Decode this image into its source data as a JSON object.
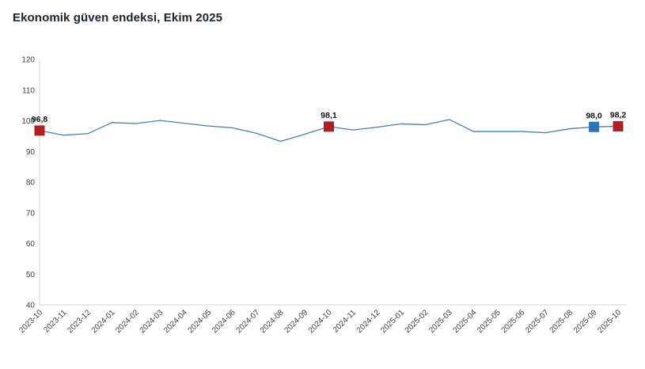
{
  "title": "Ekonomik güven endeksi, Ekim 2025",
  "colors": {
    "line": "#4580B4",
    "marker_red": "#B11E26",
    "marker_blue": "#2E75B6",
    "axis_line": "#D3D3D3",
    "tick_label": "#404040",
    "point_label": "#111111",
    "title": "#20242c",
    "background": "#FFFFFF"
  },
  "chart_data": {
    "type": "line",
    "title": "Ekonomik güven endeksi, Ekim 2025",
    "xlabel": "",
    "ylabel": "",
    "ylim": [
      40,
      120
    ],
    "ytick_step": 10,
    "yticks": [
      40,
      50,
      60,
      70,
      80,
      90,
      100,
      110,
      120
    ],
    "grid": false,
    "legend_position": "none",
    "x": [
      "2023-10",
      "2023-11",
      "2023-12",
      "2024-01",
      "2024-02",
      "2024-03",
      "2024-04",
      "2024-05",
      "2024-06",
      "2024-07",
      "2024-08",
      "2024-09",
      "2024-10",
      "2024-11",
      "2024-12",
      "2025-01",
      "2025-02",
      "2025-03",
      "2025-04",
      "2025-05",
      "2025-06",
      "2025-07",
      "2025-08",
      "2025-09",
      "2025-10"
    ],
    "values": [
      96.8,
      95.3,
      95.8,
      99.4,
      99.1,
      100.1,
      99.2,
      98.3,
      97.7,
      95.9,
      93.3,
      95.6,
      98.1,
      97.0,
      97.9,
      99.0,
      98.7,
      100.4,
      96.5,
      96.5,
      96.5,
      96.1,
      97.4,
      98.0,
      98.2
    ],
    "annotated_points": [
      {
        "index": 0,
        "x": "2023-10",
        "value": 96.8,
        "label": "96,8",
        "marker_color": "#B11E26"
      },
      {
        "index": 12,
        "x": "2024-10",
        "value": 98.1,
        "label": "98,1",
        "marker_color": "#B11E26"
      },
      {
        "index": 23,
        "x": "2025-09",
        "value": 98.0,
        "label": "98,0",
        "marker_color": "#2E75B6"
      },
      {
        "index": 24,
        "x": "2025-10",
        "value": 98.2,
        "label": "98,2",
        "marker_color": "#B11E26"
      }
    ]
  }
}
